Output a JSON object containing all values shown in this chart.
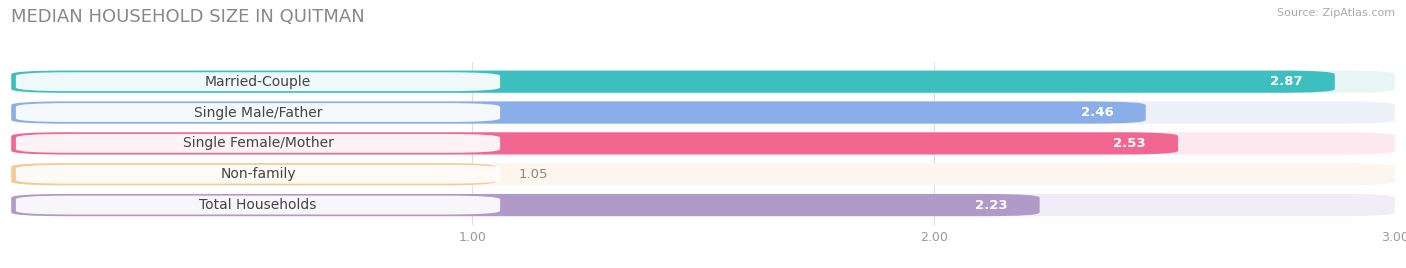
{
  "title": "MEDIAN HOUSEHOLD SIZE IN QUITMAN",
  "source": "Source: ZipAtlas.com",
  "categories": [
    "Married-Couple",
    "Single Male/Father",
    "Single Female/Mother",
    "Non-family",
    "Total Households"
  ],
  "values": [
    2.87,
    2.46,
    2.53,
    1.05,
    2.23
  ],
  "bar_colors": [
    "#3dbfbf",
    "#8aaee8",
    "#f06892",
    "#f5c896",
    "#b09ac8"
  ],
  "bar_bg_colors": [
    "#e8f5f5",
    "#edf0f8",
    "#fde8ef",
    "#fdf6ee",
    "#f0ecf8"
  ],
  "label_text_colors": [
    "#444444",
    "#444444",
    "#444444",
    "#444444",
    "#444444"
  ],
  "xlim": [
    0,
    3.0
  ],
  "xticks": [
    1.0,
    2.0,
    3.0
  ],
  "title_fontsize": 13,
  "label_fontsize": 10,
  "value_fontsize": 9.5,
  "background_color": "#ffffff"
}
